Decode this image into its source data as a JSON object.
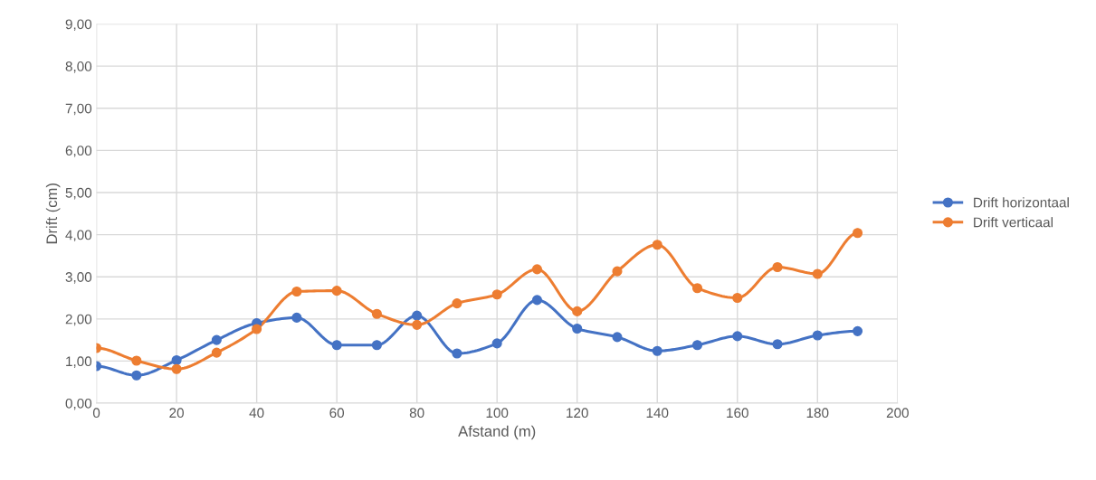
{
  "chart_data": {
    "type": "line",
    "xlabel": "Afstand (m)",
    "ylabel": "Drift (cm)",
    "x": [
      0,
      10,
      20,
      30,
      40,
      50,
      60,
      70,
      80,
      90,
      100,
      110,
      120,
      130,
      140,
      150,
      160,
      170,
      180,
      190
    ],
    "series": [
      {
        "name": "Drift horizontaal",
        "color": "#4472c4",
        "values": [
          0.88,
          0.66,
          1.02,
          1.5,
          1.9,
          2.03,
          1.38,
          1.38,
          2.08,
          1.18,
          1.42,
          2.45,
          1.77,
          1.57,
          1.24,
          1.38,
          1.59,
          1.4,
          1.61,
          1.71
        ]
      },
      {
        "name": "Drift verticaal",
        "color": "#ed7d31",
        "values": [
          1.31,
          1.01,
          0.81,
          1.2,
          1.76,
          2.65,
          2.67,
          2.12,
          1.86,
          2.37,
          2.58,
          3.18,
          2.18,
          3.13,
          3.76,
          2.73,
          2.5,
          3.23,
          3.07,
          4.04
        ]
      }
    ],
    "xlim": [
      0,
      200
    ],
    "xticks": [
      0,
      20,
      40,
      60,
      80,
      100,
      120,
      140,
      160,
      180,
      200
    ],
    "ylim": [
      0,
      9
    ],
    "yticks": [
      {
        "value": 0,
        "label": "0,00"
      },
      {
        "value": 1,
        "label": "1,00"
      },
      {
        "value": 2,
        "label": "2,00"
      },
      {
        "value": 3,
        "label": "3,00"
      },
      {
        "value": 4,
        "label": "4,00"
      },
      {
        "value": 5,
        "label": "5,00"
      },
      {
        "value": 6,
        "label": "6,00"
      },
      {
        "value": 7,
        "label": "7,00"
      },
      {
        "value": 8,
        "label": "8,00"
      },
      {
        "value": 9,
        "label": "9,00"
      }
    ],
    "grid": true,
    "legend": "right",
    "marker": "circle",
    "line_style": "solid"
  }
}
